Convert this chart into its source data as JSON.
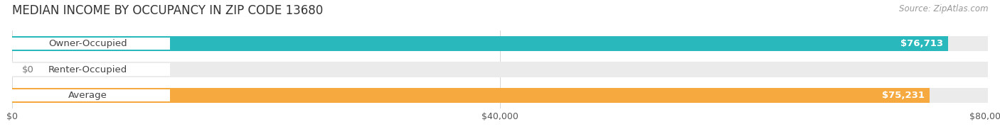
{
  "title": "MEDIAN INCOME BY OCCUPANCY IN ZIP CODE 13680",
  "source": "Source: ZipAtlas.com",
  "categories": [
    "Owner-Occupied",
    "Renter-Occupied",
    "Average"
  ],
  "values": [
    76713,
    0,
    75231
  ],
  "max_value": 80000,
  "bar_colors": [
    "#29b8bc",
    "#b09dcc",
    "#f5a93f"
  ],
  "value_labels": [
    "$76,713",
    "$0",
    "$75,231"
  ],
  "xtick_labels": [
    "$0",
    "$40,000",
    "$80,000"
  ],
  "xtick_values": [
    0,
    40000,
    80000
  ],
  "background_color": "#ffffff",
  "bar_bg_color": "#ebebeb",
  "title_fontsize": 12,
  "source_fontsize": 8.5,
  "label_fontsize": 9.5,
  "value_fontsize": 9.5,
  "tick_fontsize": 9,
  "figsize": [
    14.06,
    1.96
  ],
  "dpi": 100
}
